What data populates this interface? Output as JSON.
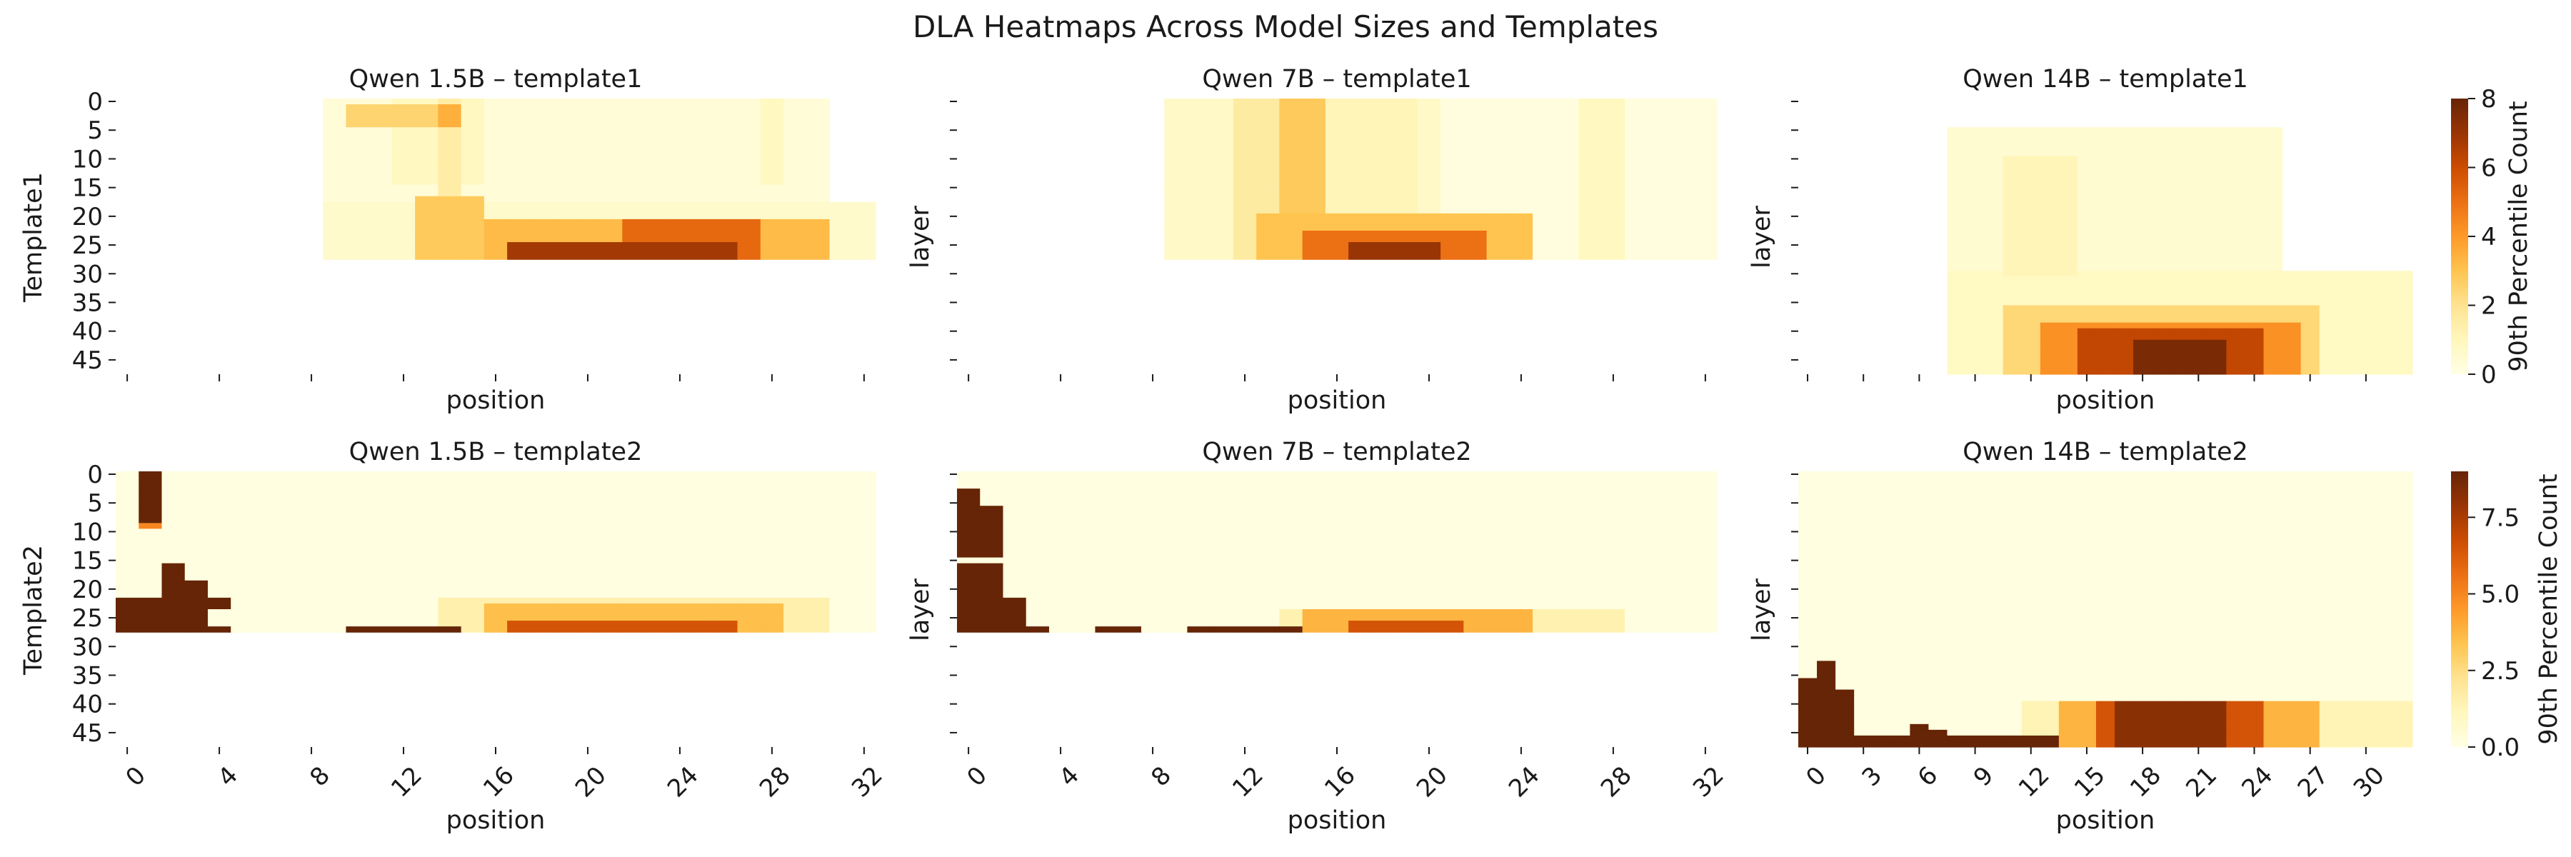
{
  "figure": {
    "title": "DLA Heatmaps Across Model Sizes and Templates"
  },
  "colors": {
    "background": "#ffffff",
    "text": "#1a1a1a",
    "colormap": [
      "#ffffe5",
      "#fff7bc",
      "#fee391",
      "#fec44f",
      "#fe9929",
      "#ec7014",
      "#cc4c02",
      "#993404",
      "#662506"
    ]
  },
  "chart_data": [
    {
      "type": "heatmap",
      "id": "p00",
      "title": "Qwen 1.5B – template1",
      "xlabel": "position",
      "ylabel": "Template1",
      "show_xticklabels": false,
      "show_yticklabels": true,
      "y_ticks": [
        0,
        5,
        10,
        15,
        20,
        25,
        30,
        35,
        40,
        45
      ],
      "y_range": [
        0,
        48
      ],
      "n_layers": 28,
      "n_positions": 33,
      "x_ticks": [
        0,
        4,
        8,
        12,
        16,
        20,
        24,
        28,
        32
      ],
      "vmax": 8,
      "blobs": [
        {
          "p": [
            9,
            30
          ],
          "l": [
            0,
            27
          ],
          "v": 0.35
        },
        {
          "p": [
            12,
            15
          ],
          "l": [
            0,
            14
          ],
          "v": 0.9
        },
        {
          "p": [
            14,
            14
          ],
          "l": [
            0,
            27
          ],
          "v": 1.5
        },
        {
          "p": [
            10,
            13
          ],
          "l": [
            1,
            4
          ],
          "v": 2.5
        },
        {
          "p": [
            14,
            14
          ],
          "l": [
            1,
            4
          ],
          "v": 3.5
        },
        {
          "p": [
            28,
            28
          ],
          "l": [
            0,
            14
          ],
          "v": 0.9
        },
        {
          "p": [
            9,
            32
          ],
          "l": [
            18,
            27
          ],
          "v": 0.6
        },
        {
          "p": [
            13,
            15
          ],
          "l": [
            17,
            27
          ],
          "v": 2.8
        },
        {
          "p": [
            16,
            30
          ],
          "l": [
            21,
            27
          ],
          "v": 3.2
        },
        {
          "p": [
            22,
            27
          ],
          "l": [
            21,
            27
          ],
          "v": 5.2
        },
        {
          "p": [
            17,
            26
          ],
          "l": [
            25,
            27
          ],
          "v": 6.8
        }
      ]
    },
    {
      "type": "heatmap",
      "id": "p01",
      "title": "Qwen 7B – template1",
      "xlabel": "position",
      "ylabel": "layer",
      "show_xticklabels": false,
      "show_yticklabels": false,
      "y_ticks": [
        0,
        5,
        10,
        15,
        20,
        25,
        30,
        35,
        40,
        45
      ],
      "y_range": [
        0,
        48
      ],
      "n_layers": 28,
      "n_positions": 33,
      "x_ticks": [
        0,
        4,
        8,
        12,
        16,
        20,
        24,
        28,
        32
      ],
      "vmax": 8,
      "blobs": [
        {
          "p": [
            9,
            32
          ],
          "l": [
            0,
            27
          ],
          "v": 0.2
        },
        {
          "p": [
            9,
            20
          ],
          "l": [
            0,
            27
          ],
          "v": 0.7
        },
        {
          "p": [
            12,
            13
          ],
          "l": [
            0,
            27
          ],
          "v": 1.6
        },
        {
          "p": [
            14,
            15
          ],
          "l": [
            0,
            27
          ],
          "v": 2.8
        },
        {
          "p": [
            16,
            19
          ],
          "l": [
            0,
            20
          ],
          "v": 1.1
        },
        {
          "p": [
            27,
            28
          ],
          "l": [
            0,
            27
          ],
          "v": 0.9
        },
        {
          "p": [
            13,
            24
          ],
          "l": [
            20,
            27
          ],
          "v": 3.0
        },
        {
          "p": [
            15,
            22
          ],
          "l": [
            23,
            27
          ],
          "v": 5.0
        },
        {
          "p": [
            17,
            20
          ],
          "l": [
            25,
            27
          ],
          "v": 7.0
        }
      ]
    },
    {
      "type": "heatmap",
      "id": "p02",
      "title": "Qwen 14B – template1",
      "xlabel": "position",
      "ylabel": "layer",
      "show_xticklabels": false,
      "show_yticklabels": false,
      "y_ticks": [
        0,
        5,
        10,
        15,
        20,
        25,
        30,
        35,
        40,
        45
      ],
      "y_range": [
        0,
        48
      ],
      "n_layers": 48,
      "n_positions": 33,
      "x_ticks": [
        0,
        3,
        6,
        9,
        12,
        15,
        18,
        21,
        24,
        27,
        30
      ],
      "vmax": 8,
      "blobs": [
        {
          "p": [
            8,
            25
          ],
          "l": [
            5,
            47
          ],
          "v": 0.5
        },
        {
          "p": [
            11,
            14
          ],
          "l": [
            10,
            30
          ],
          "v": 1.1
        },
        {
          "p": [
            8,
            32
          ],
          "l": [
            30,
            47
          ],
          "v": 0.8
        },
        {
          "p": [
            11,
            27
          ],
          "l": [
            36,
            47
          ],
          "v": 2.4
        },
        {
          "p": [
            13,
            26
          ],
          "l": [
            39,
            47
          ],
          "v": 4.2
        },
        {
          "p": [
            15,
            24
          ],
          "l": [
            40,
            47
          ],
          "v": 6.2
        },
        {
          "p": [
            18,
            22
          ],
          "l": [
            42,
            47
          ],
          "v": 7.6
        }
      ]
    },
    {
      "type": "heatmap",
      "id": "p10",
      "title": "Qwen 1.5B – template2",
      "xlabel": "position",
      "ylabel": "Template2",
      "show_xticklabels": true,
      "show_yticklabels": true,
      "y_ticks": [
        0,
        5,
        10,
        15,
        20,
        25,
        30,
        35,
        40,
        45
      ],
      "y_range": [
        0,
        48
      ],
      "n_layers": 28,
      "n_positions": 33,
      "x_ticks": [
        0,
        4,
        8,
        12,
        16,
        20,
        24,
        28,
        32
      ],
      "vmax": 9,
      "blobs": [
        {
          "p": [
            0,
            32
          ],
          "l": [
            0,
            27
          ],
          "v": 0.15
        },
        {
          "p": [
            1,
            1
          ],
          "l": [
            0,
            8
          ],
          "v": 9
        },
        {
          "p": [
            1,
            1
          ],
          "l": [
            9,
            9
          ],
          "v": 5
        },
        {
          "p": [
            0,
            1
          ],
          "l": [
            22,
            27
          ],
          "v": 9
        },
        {
          "p": [
            2,
            2
          ],
          "l": [
            16,
            27
          ],
          "v": 9
        },
        {
          "p": [
            3,
            3
          ],
          "l": [
            19,
            27
          ],
          "v": 9
        },
        {
          "p": [
            4,
            4
          ],
          "l": [
            22,
            23
          ],
          "v": 9
        },
        {
          "p": [
            4,
            4
          ],
          "l": [
            27,
            27
          ],
          "v": 9
        },
        {
          "p": [
            10,
            14
          ],
          "l": [
            27,
            27
          ],
          "v": 9
        },
        {
          "p": [
            14,
            30
          ],
          "l": [
            22,
            27
          ],
          "v": 1.5
        },
        {
          "p": [
            16,
            28
          ],
          "l": [
            23,
            27
          ],
          "v": 3.5
        },
        {
          "p": [
            17,
            26
          ],
          "l": [
            26,
            27
          ],
          "v": 6.5
        }
      ]
    },
    {
      "type": "heatmap",
      "id": "p11",
      "title": "Qwen 7B – template2",
      "xlabel": "position",
      "ylabel": "layer",
      "show_xticklabels": true,
      "show_yticklabels": false,
      "y_ticks": [
        0,
        5,
        10,
        15,
        20,
        25,
        30,
        35,
        40,
        45
      ],
      "y_range": [
        0,
        48
      ],
      "n_layers": 28,
      "n_positions": 33,
      "x_ticks": [
        0,
        4,
        8,
        12,
        16,
        20,
        24,
        28,
        32
      ],
      "vmax": 9,
      "blobs": [
        {
          "p": [
            0,
            32
          ],
          "l": [
            0,
            27
          ],
          "v": 0.15
        },
        {
          "p": [
            0,
            0
          ],
          "l": [
            3,
            14
          ],
          "v": 9
        },
        {
          "p": [
            0,
            1
          ],
          "l": [
            16,
            27
          ],
          "v": 9
        },
        {
          "p": [
            1,
            1
          ],
          "l": [
            6,
            14
          ],
          "v": 9
        },
        {
          "p": [
            2,
            2
          ],
          "l": [
            22,
            27
          ],
          "v": 9
        },
        {
          "p": [
            3,
            3
          ],
          "l": [
            27,
            27
          ],
          "v": 9
        },
        {
          "p": [
            6,
            7
          ],
          "l": [
            27,
            27
          ],
          "v": 9
        },
        {
          "p": [
            10,
            14
          ],
          "l": [
            27,
            27
          ],
          "v": 9
        },
        {
          "p": [
            14,
            28
          ],
          "l": [
            24,
            27
          ],
          "v": 1.4
        },
        {
          "p": [
            15,
            24
          ],
          "l": [
            24,
            27
          ],
          "v": 3.8
        },
        {
          "p": [
            17,
            21
          ],
          "l": [
            26,
            27
          ],
          "v": 6.5
        }
      ]
    },
    {
      "type": "heatmap",
      "id": "p12",
      "title": "Qwen 14B – template2",
      "xlabel": "position",
      "ylabel": "layer",
      "show_xticklabels": true,
      "show_yticklabels": false,
      "y_ticks": [
        0,
        5,
        10,
        15,
        20,
        25,
        30,
        35,
        40,
        45
      ],
      "y_range": [
        0,
        48
      ],
      "n_layers": 48,
      "n_positions": 33,
      "x_ticks": [
        0,
        3,
        6,
        9,
        12,
        15,
        18,
        21,
        24,
        27,
        30
      ],
      "vmax": 9,
      "blobs": [
        {
          "p": [
            0,
            32
          ],
          "l": [
            0,
            47
          ],
          "v": 0.15
        },
        {
          "p": [
            0,
            0
          ],
          "l": [
            36,
            47
          ],
          "v": 9
        },
        {
          "p": [
            1,
            1
          ],
          "l": [
            33,
            47
          ],
          "v": 9
        },
        {
          "p": [
            2,
            2
          ],
          "l": [
            38,
            47
          ],
          "v": 9
        },
        {
          "p": [
            3,
            13
          ],
          "l": [
            46,
            47
          ],
          "v": 9
        },
        {
          "p": [
            6,
            6
          ],
          "l": [
            44,
            47
          ],
          "v": 9
        },
        {
          "p": [
            7,
            7
          ],
          "l": [
            45,
            47
          ],
          "v": 9
        },
        {
          "p": [
            12,
            32
          ],
          "l": [
            40,
            47
          ],
          "v": 1.3
        },
        {
          "p": [
            14,
            27
          ],
          "l": [
            40,
            47
          ],
          "v": 3.8
        },
        {
          "p": [
            16,
            24
          ],
          "l": [
            40,
            47
          ],
          "v": 6.5
        },
        {
          "p": [
            17,
            22
          ],
          "l": [
            40,
            47
          ],
          "v": 8.2
        }
      ]
    }
  ],
  "colorbars": [
    {
      "id": "cb0",
      "label": "90th Percentile Count",
      "vmin": 0,
      "vmax": 8,
      "ticks": [
        "0",
        "2",
        "4",
        "6",
        "8"
      ]
    },
    {
      "id": "cb1",
      "label": "90th Percentile Count",
      "vmin": 0,
      "vmax": 9,
      "ticks": [
        "0.0",
        "2.5",
        "5.0",
        "7.5"
      ]
    }
  ]
}
